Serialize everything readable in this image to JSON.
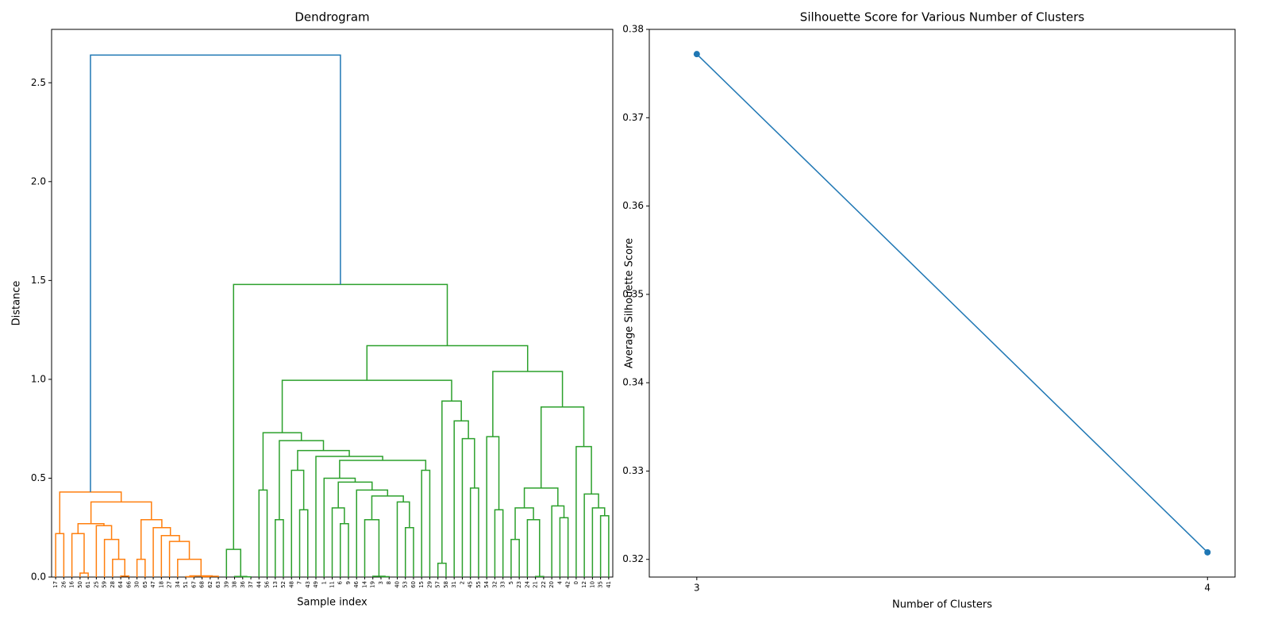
{
  "chart_data": [
    {
      "type": "dendrogram",
      "title": "Dendrogram",
      "xlabel": "Sample index",
      "ylabel": "Distance",
      "ylim": [
        0,
        2.77
      ],
      "yticks": [
        {
          "value": 0,
          "label": "0.0"
        },
        0.5,
        {
          "value": 1,
          "label": "1.0"
        },
        1.5,
        {
          "value": 2,
          "label": "2.0"
        },
        2.5
      ],
      "tree": {
        "height": 2.64,
        "color": "#1f77b4",
        "children": [
          {
            "height": 0.43,
            "color": "#ff7f0e",
            "children": [
              {
                "height": 0.22,
                "children": [
                  "17",
                  "26"
                ]
              },
              {
                "height": 0.38,
                "children": [
                  {
                    "height": 0.27,
                    "children": [
                      {
                        "height": 0.22,
                        "children": [
                          "16",
                          {
                            "height": 0.02,
                            "children": [
                              "50",
                              "61"
                            ]
                          }
                        ]
                      },
                      {
                        "height": 0.26,
                        "children": [
                          "25",
                          {
                            "height": 0.19,
                            "children": [
                              "59",
                              {
                                "height": 0.09,
                                "children": [
                                  "28",
                                  {
                                    "height": 0.005,
                                    "children": [
                                      "64",
                                      "66"
                                    ]
                                  }
                                ]
                              }
                            ]
                          }
                        ]
                      }
                    ]
                  },
                  {
                    "height": 0.29,
                    "children": [
                      {
                        "height": 0.09,
                        "children": [
                          "30",
                          "65"
                        ]
                      },
                      {
                        "height": 0.25,
                        "children": [
                          "47",
                          {
                            "height": 0.21,
                            "children": [
                              "18",
                              {
                                "height": 0.18,
                                "children": [
                                  "27",
                                  {
                                    "height": 0.09,
                                    "children": [
                                      "34",
                                      {
                                        "height": 0.006,
                                        "children": [
                                          {
                                            "height": 0.002,
                                            "children": [
                                              "51",
                                              "67"
                                            ]
                                          },
                                          {
                                            "height": 0.004,
                                            "children": [
                                              {
                                                "height": 0.002,
                                                "children": [
                                                  "68",
                                                  "62"
                                                ]
                                              },
                                              "63"
                                            ]
                                          }
                                        ]
                                      }
                                    ]
                                  }
                                ]
                              }
                            ]
                          }
                        ]
                      }
                    ]
                  }
                ]
              }
            ]
          },
          {
            "height": 1.48,
            "color": "#2ca02c",
            "children": [
              {
                "height": 0.14,
                "children": [
                  "39",
                  {
                    "height": 0.003,
                    "children": [
                      "38",
                      {
                        "height": 0.001,
                        "children": [
                          "36",
                          "37"
                        ]
                      }
                    ]
                  }
                ]
              },
              {
                "height": 1.17,
                "children": [
                  {
                    "height": 0.995,
                    "children": [
                      {
                        "height": 0.73,
                        "children": [
                          {
                            "height": 0.44,
                            "children": [
                              "44",
                              "56"
                            ]
                          },
                          {
                            "height": 0.69,
                            "children": [
                              {
                                "height": 0.29,
                                "children": [
                                  "13",
                                  "52"
                                ]
                              },
                              {
                                "height": 0.64,
                                "children": [
                                  {
                                    "height": 0.54,
                                    "children": [
                                      "48",
                                      {
                                        "height": 0.34,
                                        "children": [
                                          "7",
                                          "43"
                                        ]
                                      }
                                    ]
                                  },
                                  {
                                    "height": 0.61,
                                    "children": [
                                      "49",
                                      {
                                        "height": 0.59,
                                        "children": [
                                          {
                                            "height": 0.5,
                                            "children": [
                                              "1",
                                              {
                                                "height": 0.48,
                                                "children": [
                                                  {
                                                    "height": 0.35,
                                                    "children": [
                                                      "11",
                                                      {
                                                        "height": 0.27,
                                                        "children": [
                                                          "6",
                                                          "9"
                                                        ]
                                                      }
                                                    ]
                                                  },
                                                  {
                                                    "height": 0.44,
                                                    "children": [
                                                      "46",
                                                      {
                                                        "height": 0.41,
                                                        "children": [
                                                          {
                                                            "height": 0.29,
                                                            "children": [
                                                              "14",
                                                              {
                                                                "height": 0.004,
                                                                "children": [
                                                                  "19",
                                                                  {
                                                                    "height": 0.002,
                                                                    "children": [
                                                                      "3",
                                                                      "8"
                                                                    ]
                                                                  }
                                                                ]
                                                              }
                                                            ]
                                                          },
                                                          {
                                                            "height": 0.38,
                                                            "children": [
                                                              "40",
                                                              {
                                                                "height": 0.25,
                                                                "children": [
                                                                  "53",
                                                                  "60"
                                                                ]
                                                              }
                                                            ]
                                                          }
                                                        ]
                                                      }
                                                    ]
                                                  }
                                                ]
                                              }
                                            ]
                                          },
                                          {
                                            "height": 0.54,
                                            "children": [
                                              "15",
                                              "29"
                                            ]
                                          }
                                        ]
                                      }
                                    ]
                                  }
                                ]
                              }
                            ]
                          }
                        ]
                      },
                      {
                        "height": 0.89,
                        "children": [
                          {
                            "height": 0.07,
                            "children": [
                              "57",
                              "58"
                            ]
                          },
                          {
                            "height": 0.79,
                            "children": [
                              "31",
                              {
                                "height": 0.7,
                                "children": [
                                  "2",
                                  {
                                    "height": 0.45,
                                    "children": [
                                      "45",
                                      "55"
                                    ]
                                  }
                                ]
                              }
                            ]
                          }
                        ]
                      }
                    ]
                  },
                  {
                    "height": 1.04,
                    "children": [
                      {
                        "height": 0.71,
                        "children": [
                          "54",
                          {
                            "height": 0.34,
                            "children": [
                              "32",
                              "33"
                            ]
                          }
                        ]
                      },
                      {
                        "height": 0.86,
                        "children": [
                          {
                            "height": 0.45,
                            "children": [
                              {
                                "height": 0.35,
                                "children": [
                                  {
                                    "height": 0.19,
                                    "children": [
                                      "5",
                                      "23"
                                    ]
                                  },
                                  {
                                    "height": 0.29,
                                    "children": [
                                      "24",
                                      {
                                        "height": 0.003,
                                        "children": [
                                          "21",
                                          "22"
                                        ]
                                      }
                                    ]
                                  }
                                ]
                              },
                              {
                                "height": 0.36,
                                "children": [
                                  "20",
                                  {
                                    "height": 0.3,
                                    "children": [
                                      "4",
                                      "42"
                                    ]
                                  }
                                ]
                              }
                            ]
                          },
                          {
                            "height": 0.66,
                            "children": [
                              "0",
                              {
                                "height": 0.42,
                                "children": [
                                  "12",
                                  {
                                    "height": 0.35,
                                    "children": [
                                      "10",
                                      {
                                        "height": 0.31,
                                        "children": [
                                          "35",
                                          "41"
                                        ]
                                      }
                                    ]
                                  }
                                ]
                              }
                            ]
                          }
                        ]
                      }
                    ]
                  }
                ]
              }
            ]
          }
        ]
      }
    },
    {
      "type": "line",
      "title": "Silhouette Score for Various Number of Clusters",
      "xlabel": "Number of Clusters",
      "ylabel": "Average Silhouette Score",
      "x": [
        3,
        4
      ],
      "values": [
        0.3772,
        0.3208
      ],
      "color": "#1f77b4",
      "marker": true,
      "xlim": [
        2.907,
        4.054
      ],
      "xticks": [
        3,
        4
      ],
      "ylim": [
        0.318,
        0.38
      ],
      "yticks": [
        0.32,
        0.33,
        0.34,
        0.35,
        0.36,
        0.37,
        0.38
      ]
    }
  ]
}
